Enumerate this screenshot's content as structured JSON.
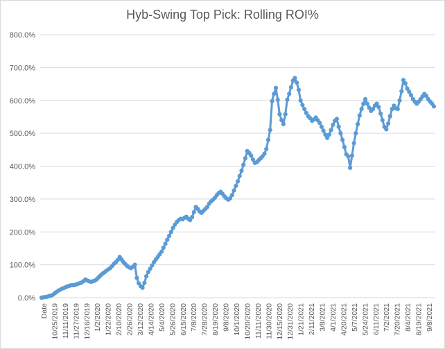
{
  "chart_data": {
    "type": "line",
    "title": "Hyb-Swing Top Pick: Rolling ROI%",
    "xlabel": "",
    "ylabel": "",
    "ylim": [
      0,
      800
    ],
    "y_ticks": [
      "0.0%",
      "100.0%",
      "200.0%",
      "300.0%",
      "400.0%",
      "500.0%",
      "600.0%",
      "700.0%",
      "800.0%"
    ],
    "x_tick_labels": [
      "Date",
      "10/25/2019",
      "11/11/2019",
      "11/27/2019",
      "12/16/2019",
      "1/2/2020",
      "1/22/2020",
      "2/10/2020",
      "2/26/2020",
      "3/12/2020",
      "4/14/2020",
      "5/4/2020",
      "5/26/2020",
      "6/15/2020",
      "7/8/2020",
      "7/28/2020",
      "8/19/2020",
      "9/8/2020",
      "10/1/2020",
      "10/20/2020",
      "11/11/2020",
      "11/30/2020",
      "12/15/2020",
      "12/31/2020",
      "1/21/2021",
      "2/11/2021",
      "3/8/2021",
      "4/1/2021",
      "4/20/2021",
      "5/7/2021",
      "5/24/2021",
      "6/11/2021",
      "7/2/2021",
      "7/20/2021",
      "8/4/2021",
      "8/19/2021",
      "9/8/2021"
    ],
    "grid": true,
    "legend": "none",
    "series_color": "#5b9bd5",
    "series": [
      {
        "values": [
          0,
          1,
          2,
          3,
          5,
          6,
          9,
          14,
          18,
          22,
          25,
          28,
          30,
          33,
          35,
          37,
          38,
          38,
          40,
          42,
          44,
          46,
          50,
          55,
          52,
          50,
          48,
          50,
          52,
          56,
          62,
          68,
          73,
          77,
          82,
          86,
          90,
          96,
          103,
          108,
          115,
          124,
          116,
          108,
          102,
          96,
          92,
          90,
          94,
          100,
          60,
          44,
          35,
          30,
          45,
          65,
          78,
          88,
          98,
          108,
          116,
          124,
          132,
          140,
          152,
          164,
          176,
          188,
          200,
          212,
          222,
          230,
          236,
          240,
          238,
          243,
          246,
          240,
          236,
          245,
          260,
          276,
          270,
          262,
          258,
          264,
          270,
          276,
          286,
          293,
          298,
          304,
          312,
          318,
          322,
          316,
          308,
          302,
          298,
          302,
          312,
          326,
          340,
          354,
          370,
          386,
          404,
          424,
          446,
          440,
          432,
          420,
          410,
          412,
          418,
          424,
          430,
          438,
          452,
          480,
          510,
          598,
          620,
          638,
          602,
          558,
          540,
          528,
          558,
          602,
          620,
          640,
          660,
          668,
          654,
          632,
          600,
          586,
          574,
          562,
          552,
          546,
          538,
          542,
          548,
          540,
          532,
          520,
          508,
          496,
          486,
          496,
          510,
          526,
          538,
          544,
          520,
          500,
          480,
          458,
          436,
          430,
          395,
          432,
          470,
          500,
          528,
          554,
          574,
          590,
          604,
          590,
          578,
          568,
          574,
          584,
          590,
          580,
          560,
          540,
          520,
          512,
          530,
          552,
          574,
          584,
          576,
          574,
          600,
          628,
          662,
          652,
          636,
          626,
          616,
          604,
          596,
          590,
          596,
          604,
          612,
          620,
          614,
          604,
          596,
          590,
          582
        ]
      }
    ]
  }
}
